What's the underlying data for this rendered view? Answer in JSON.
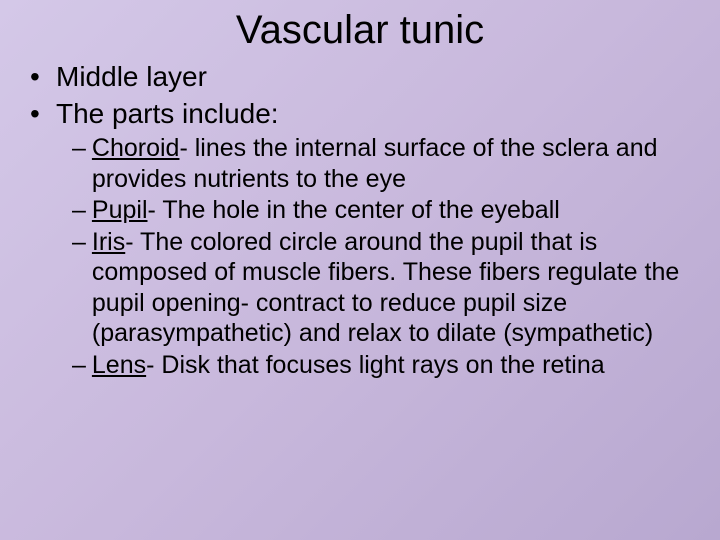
{
  "slide": {
    "title": "Vascular tunic",
    "background_gradient": [
      "#d4c8e8",
      "#c8b8dc",
      "#b8a8d0"
    ],
    "title_fontsize": 40,
    "body_fontsize_l1": 28,
    "body_fontsize_l2": 25,
    "text_color": "#000000",
    "bullets": [
      {
        "level": 1,
        "text": "Middle layer"
      },
      {
        "level": 1,
        "text": "The parts include:"
      },
      {
        "level": 2,
        "term": "Choroid",
        "rest": "- lines the internal surface of the sclera and provides nutrients to the eye"
      },
      {
        "level": 2,
        "term": "Pupil",
        "rest": "- The hole in the center of the eyeball"
      },
      {
        "level": 2,
        "term": "Iris",
        "rest": "- The colored circle around the pupil that is composed of muscle fibers.  These fibers regulate the pupil opening- contract to reduce pupil size (parasympathetic) and relax to dilate (sympathetic)"
      },
      {
        "level": 2,
        "term": "Lens",
        "rest": "- Disk that focuses light rays on the retina"
      }
    ]
  }
}
